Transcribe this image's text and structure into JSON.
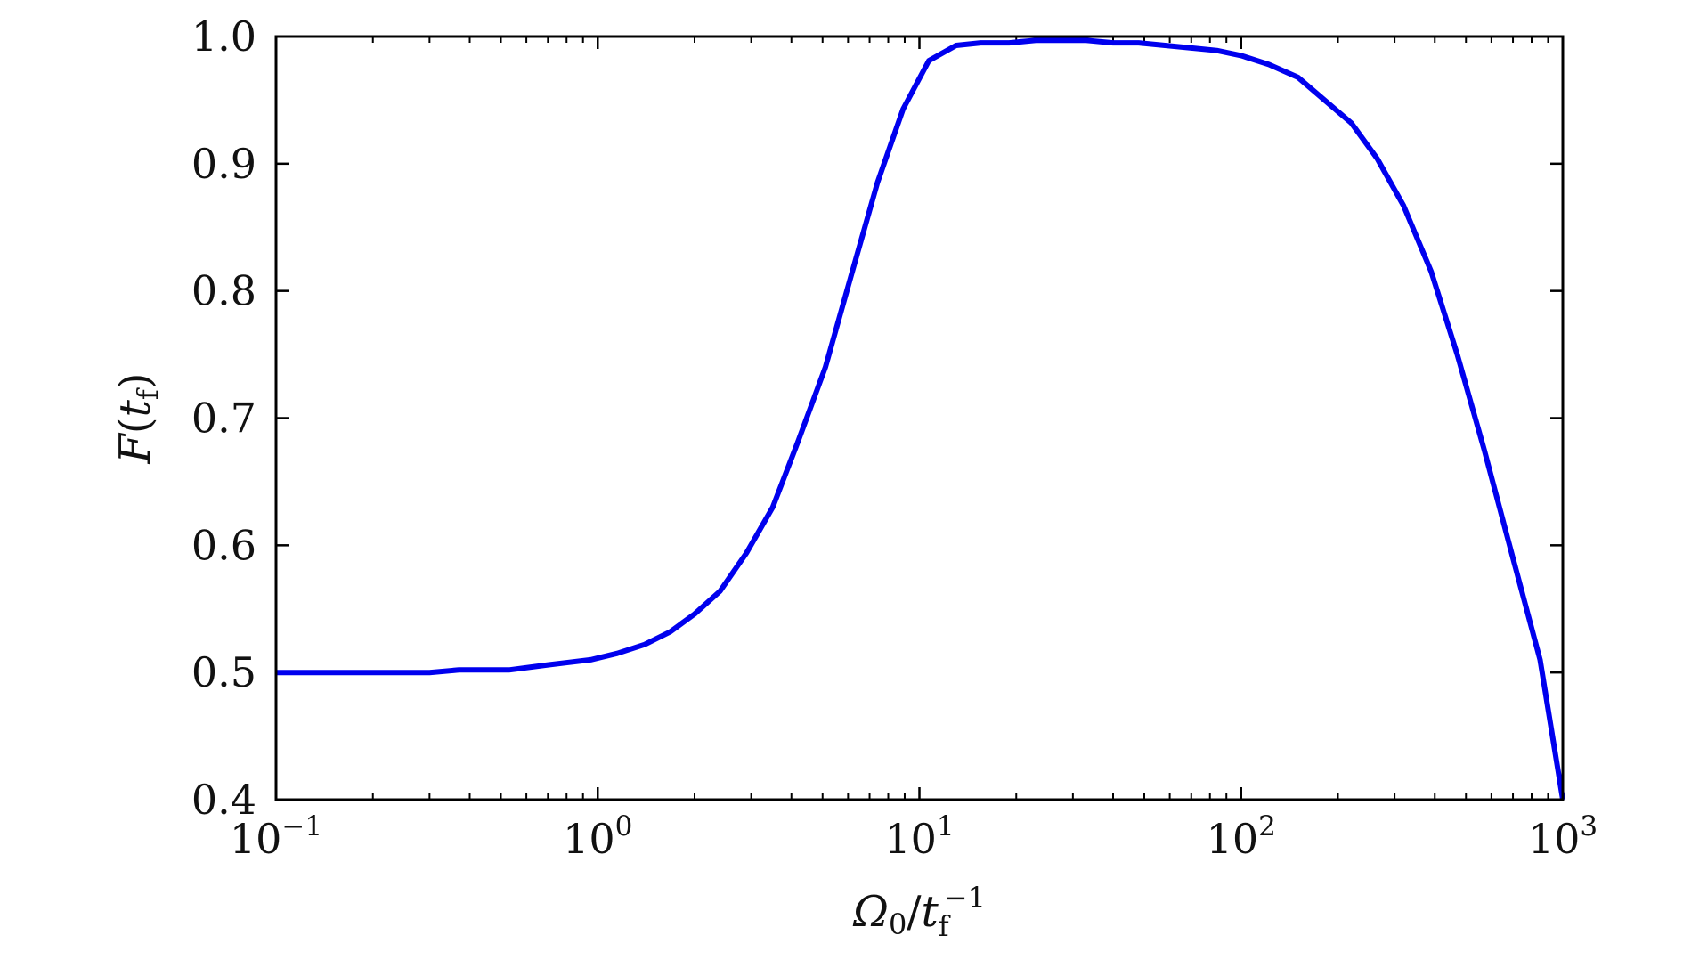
{
  "chart_data": {
    "type": "line",
    "xscale": "log",
    "xlim": [
      0.1,
      1000
    ],
    "ylim": [
      0.4,
      1.0
    ],
    "grid": false,
    "legend": "none",
    "xlabel": {
      "main": "Ω",
      "sub": "0",
      "slash": "/",
      "var": "t",
      "var_sub": "f",
      "var_sup": "−1"
    },
    "ylabel": {
      "main": "F",
      "open": "(",
      "var": "t",
      "var_sub": "f",
      "close": ")"
    },
    "x_ticks": [
      {
        "value": 0.1,
        "base": "10",
        "exp": "−1"
      },
      {
        "value": 1,
        "base": "10",
        "exp": "0"
      },
      {
        "value": 10,
        "base": "10",
        "exp": "1"
      },
      {
        "value": 100,
        "base": "10",
        "exp": "2"
      },
      {
        "value": 1000,
        "base": "10",
        "exp": "3"
      }
    ],
    "y_ticks": [
      {
        "value": 0.4,
        "label": "0.4"
      },
      {
        "value": 0.5,
        "label": "0.5"
      },
      {
        "value": 0.6,
        "label": "0.6"
      },
      {
        "value": 0.7,
        "label": "0.7"
      },
      {
        "value": 0.8,
        "label": "0.8"
      },
      {
        "value": 0.9,
        "label": "0.9"
      },
      {
        "value": 1.0,
        "label": "1.0"
      }
    ],
    "series": [
      {
        "color": "#0000ee",
        "x": [
          0.1,
          0.3,
          0.37,
          0.53,
          0.7,
          0.95,
          1.15,
          1.4,
          1.68,
          2.0,
          2.4,
          2.9,
          3.5,
          4.2,
          5.1,
          6.1,
          7.4,
          8.9,
          10.7,
          13.0,
          15.5,
          19,
          23,
          28,
          33,
          40,
          48,
          58,
          70,
          84,
          100,
          122,
          150,
          220,
          265,
          320,
          390,
          470,
          570,
          700,
          850,
          1000
        ],
        "y": [
          0.5,
          0.5,
          0.502,
          0.502,
          0.506,
          0.51,
          0.515,
          0.522,
          0.532,
          0.546,
          0.564,
          0.594,
          0.63,
          0.682,
          0.74,
          0.81,
          0.885,
          0.943,
          0.981,
          0.993,
          0.995,
          0.995,
          0.997,
          0.997,
          0.997,
          0.995,
          0.995,
          0.993,
          0.991,
          0.989,
          0.985,
          0.978,
          0.968,
          0.932,
          0.904,
          0.867,
          0.815,
          0.75,
          0.675,
          0.59,
          0.51,
          0.4
        ]
      }
    ]
  }
}
